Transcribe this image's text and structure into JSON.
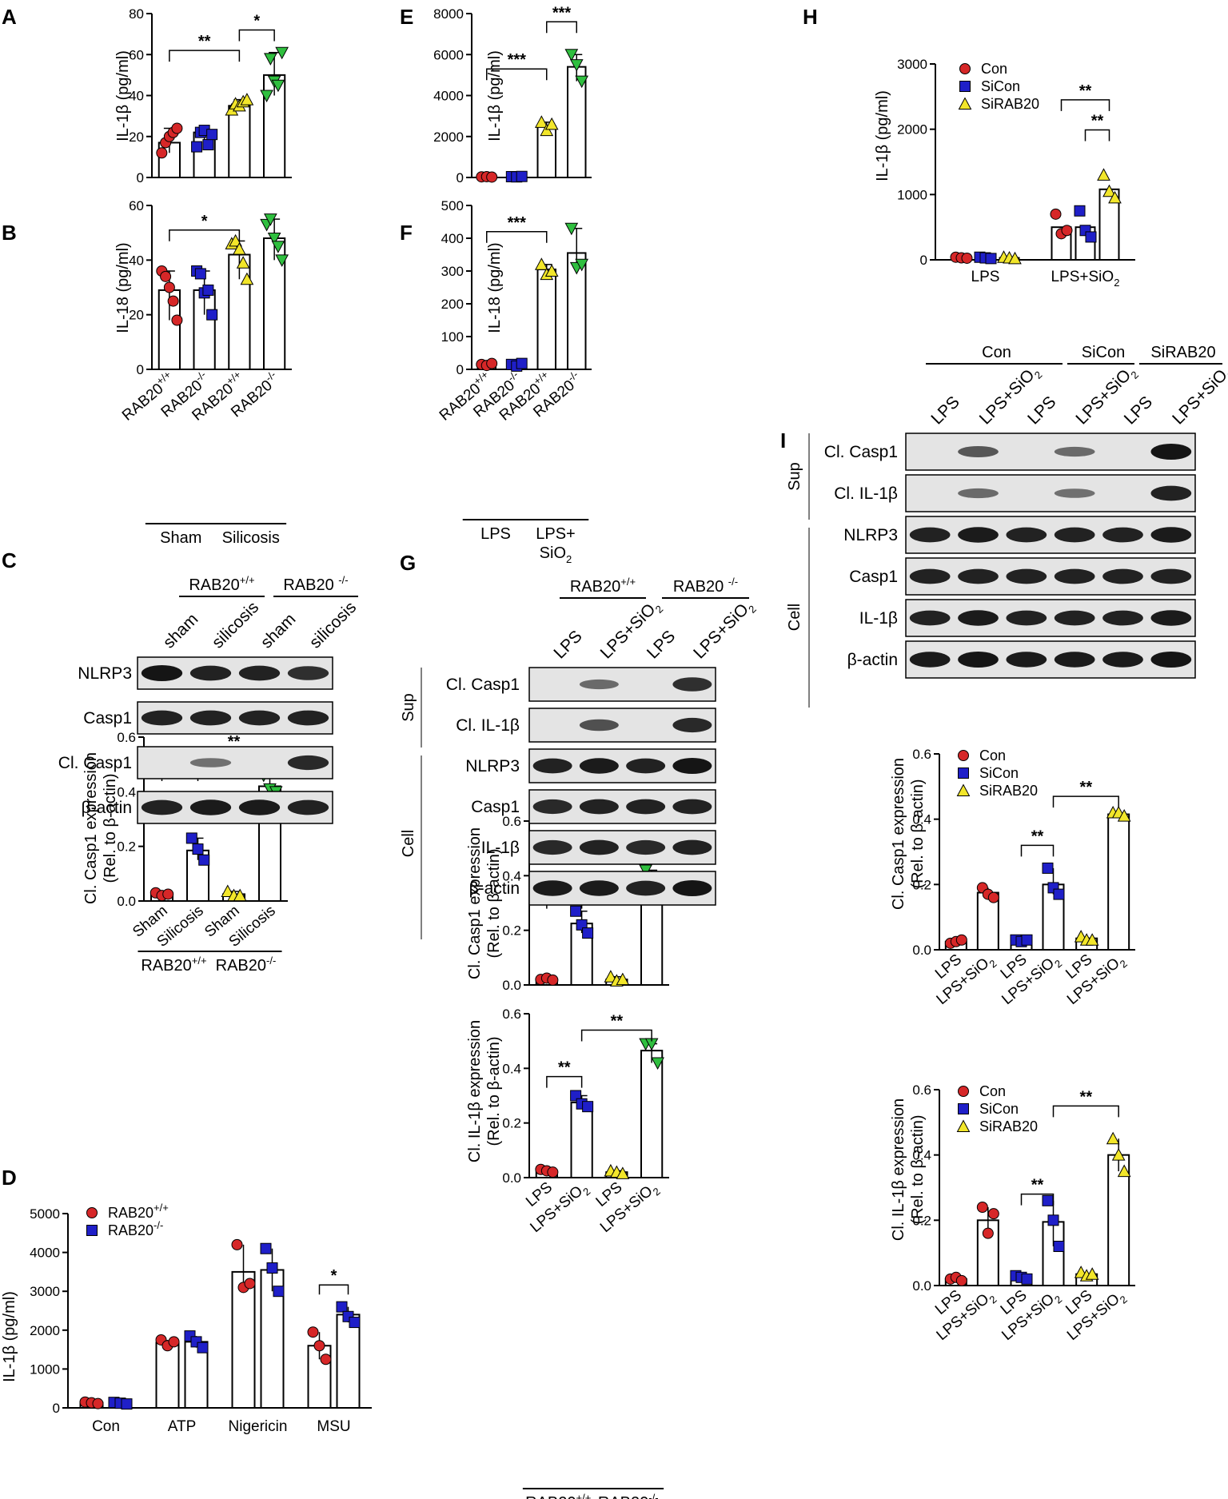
{
  "panels": {
    "A": "A",
    "B": "B",
    "C": "C",
    "D": "D",
    "E": "E",
    "F": "F",
    "G": "G",
    "H": "H",
    "I": "I"
  },
  "colors": {
    "red": "#d62728",
    "blue": "#1f1fc8",
    "yellow": "#f2e62a",
    "green": "#2fbf3f"
  },
  "charts": [
    {
      "id": "A",
      "type": "bar",
      "ylabel": "IL-1β (pg/ml)",
      "ylim": [
        0,
        80
      ],
      "ticks": [
        0,
        20,
        40,
        60,
        80
      ],
      "categories": [
        "RAB20+/+",
        "RAB20-/-",
        "RAB20+/+",
        "RAB20-/-"
      ],
      "values": [
        17,
        22,
        35,
        50
      ],
      "points": [
        [
          12,
          17,
          20,
          22,
          24
        ],
        [
          15,
          22,
          23,
          16,
          21
        ],
        [
          33,
          36,
          35,
          37,
          38
        ],
        [
          40,
          58,
          47,
          45,
          61
        ]
      ],
      "colors": [
        "red",
        "blue",
        "yellow",
        "green"
      ],
      "sig": [
        {
          "from": 0,
          "to": 2,
          "label": "**",
          "y": 62
        },
        {
          "from": 2,
          "to": 3,
          "label": "*",
          "y": 72
        }
      ]
    },
    {
      "id": "B",
      "type": "bar",
      "ylabel": "IL-18 (pg/ml)",
      "ylim": [
        0,
        60
      ],
      "ticks": [
        0,
        20,
        40,
        60
      ],
      "categories": [
        "RAB20+/+",
        "RAB20-/-",
        "RAB20+/+",
        "RAB20-/-"
      ],
      "values": [
        29,
        29,
        42,
        48
      ],
      "points": [
        [
          36,
          34,
          30,
          25,
          18
        ],
        [
          36,
          35,
          28,
          29,
          20
        ],
        [
          46,
          47,
          44,
          39,
          33
        ],
        [
          53,
          55,
          48,
          45,
          40
        ]
      ],
      "colors": [
        "red",
        "blue",
        "yellow",
        "green"
      ],
      "sig": [
        {
          "from": 0,
          "to": 2,
          "label": "*",
          "y": 51
        }
      ],
      "groups": [
        "Sham",
        "Silicosis"
      ]
    },
    {
      "id": "E",
      "type": "bar",
      "ylabel": "IL-1β (pg/ml)",
      "ylim": [
        0,
        8000
      ],
      "ticks": [
        0,
        2000,
        4000,
        6000,
        8000
      ],
      "categories": [],
      "values": [
        30,
        40,
        2500,
        5400
      ],
      "points": [
        [
          30,
          40,
          20
        ],
        [
          40,
          30,
          50
        ],
        [
          2700,
          2300,
          2600
        ],
        [
          6000,
          5500,
          4700
        ]
      ],
      "colors": [
        "red",
        "blue",
        "yellow",
        "green"
      ],
      "sig": [
        {
          "from": 0,
          "to": 2,
          "label": "***",
          "y": 5300
        },
        {
          "from": 2,
          "to": 3,
          "label": "***",
          "y": 7600
        }
      ]
    },
    {
      "id": "F",
      "type": "bar",
      "ylabel": "IL-18 (pg/ml)",
      "ylim": [
        0,
        500
      ],
      "ticks": [
        0,
        100,
        200,
        300,
        400,
        500
      ],
      "categories": [
        "RAB20+/+",
        "RAB20-/-",
        "RAB20+/+",
        "RAB20-/-"
      ],
      "values": [
        15,
        15,
        305,
        355
      ],
      "points": [
        [
          15,
          12,
          18
        ],
        [
          15,
          10,
          18
        ],
        [
          320,
          290,
          300
        ],
        [
          430,
          310,
          320
        ]
      ],
      "colors": [
        "red",
        "blue",
        "yellow",
        "green"
      ],
      "sig": [
        {
          "from": 0,
          "to": 2,
          "label": "***",
          "y": 420
        }
      ],
      "groups": [
        "LPS",
        "LPS+\nSiO2"
      ]
    },
    {
      "id": "C2",
      "type": "bar",
      "ylabel": "Cl. Casp1  expression\n(Rel. to β-actin)",
      "ylim": [
        0,
        0.6
      ],
      "ticks": [
        "0.0",
        "0.2",
        "0.4",
        "0.6"
      ],
      "categories": [
        "Sham",
        "Silicosis",
        "Sham",
        "Silicosis"
      ],
      "values": [
        0.025,
        0.185,
        0.025,
        0.42
      ],
      "points": [
        [
          0.03,
          0.02,
          0.025
        ],
        [
          0.23,
          0.19,
          0.15
        ],
        [
          0.035,
          0.02,
          0.02
        ],
        [
          0.46,
          0.41,
          0.4
        ]
      ],
      "colors": [
        "red",
        "blue",
        "yellow",
        "green"
      ],
      "sig": [
        {
          "from": 0,
          "to": 1,
          "label": "**",
          "y": 0.48
        },
        {
          "from": 1,
          "to": 3,
          "label": "**",
          "y": 0.55
        }
      ],
      "groups": [
        "RAB20+/+",
        "RAB20-/-"
      ]
    },
    {
      "id": "D",
      "type": "grouped",
      "ylabel": "IL-1β (pg/ml)",
      "ylim": [
        0,
        5000
      ],
      "ticks": [
        0,
        1000,
        2000,
        3000,
        4000,
        5000
      ],
      "categories": [
        "Con",
        "ATP",
        "Nigericin",
        "MSU"
      ],
      "values": [
        [
          130,
          120
        ],
        [
          1680,
          1700
        ],
        [
          3500,
          3550
        ],
        [
          1600,
          2400
        ]
      ],
      "points": [
        [
          [
            150,
            130,
            110
          ],
          [
            140,
            120,
            100
          ]
        ],
        [
          [
            1750,
            1600,
            1700
          ],
          [
            1850,
            1700,
            1550
          ]
        ],
        [
          [
            4200,
            3100,
            3200
          ],
          [
            4100,
            3600,
            3000
          ]
        ],
        [
          [
            1950,
            1600,
            1250
          ],
          [
            2600,
            2350,
            2200
          ]
        ]
      ],
      "legend": [
        "RAB20+/+",
        "RAB20-/-"
      ],
      "sig": [
        {
          "cat": 3,
          "label": "*",
          "y": 3000
        }
      ]
    },
    {
      "id": "G1",
      "type": "bar",
      "ylabel": "Cl. Casp1  expression\n(Rel. to β-actin)",
      "ylim": [
        0,
        0.6
      ],
      "ticks": [
        "0.0",
        "0.2",
        "0.4",
        "0.6"
      ],
      "categories": [],
      "values": [
        0.02,
        0.225,
        0.02,
        0.385
      ],
      "points": [
        [
          0.02,
          0.025,
          0.018
        ],
        [
          0.27,
          0.22,
          0.19
        ],
        [
          0.03,
          0.015,
          0.02
        ],
        [
          0.42,
          0.39,
          0.35
        ]
      ],
      "colors": [
        "red",
        "blue",
        "yellow",
        "green"
      ],
      "sig": [
        {
          "from": 0,
          "to": 1,
          "label": "**",
          "y": 0.32
        },
        {
          "from": 1,
          "to": 3,
          "label": "*",
          "y": 0.5
        }
      ]
    },
    {
      "id": "G2",
      "type": "bar",
      "ylabel": "Cl. IL-1β  expression\n(Rel. to β-actin)",
      "ylim": [
        0,
        0.6
      ],
      "ticks": [
        "0.0",
        "0.2",
        "0.4",
        "0.6"
      ],
      "categories": [
        "LPS",
        "LPS+SiO2",
        "LPS",
        "LPS+SiO2"
      ],
      "values": [
        0.025,
        0.275,
        0.02,
        0.465
      ],
      "points": [
        [
          0.03,
          0.025,
          0.02
        ],
        [
          0.3,
          0.27,
          0.26
        ],
        [
          0.025,
          0.02,
          0.015
        ],
        [
          0.49,
          0.49,
          0.42
        ]
      ],
      "colors": [
        "red",
        "blue",
        "yellow",
        "green"
      ],
      "sig": [
        {
          "from": 0,
          "to": 1,
          "label": "**",
          "y": 0.37
        },
        {
          "from": 1,
          "to": 3,
          "label": "**",
          "y": 0.54
        }
      ],
      "groups": [
        "RAB20+/+",
        "RAB20-/-"
      ]
    },
    {
      "id": "H",
      "type": "grouped3",
      "ylabel": "IL-1β (pg/ml)",
      "ylim": [
        0,
        3000
      ],
      "ticks": [
        0,
        1000,
        2000,
        3000
      ],
      "categories": [
        "LPS",
        "LPS+SiO2"
      ],
      "values": [
        [
          30,
          30,
          30
        ],
        [
          500,
          500,
          1080
        ]
      ],
      "points": [
        [
          [
            40,
            30,
            25
          ],
          [
            40,
            30,
            20
          ],
          [
            40,
            30,
            20
          ]
        ],
        [
          [
            700,
            400,
            450
          ],
          [
            750,
            450,
            350
          ],
          [
            1300,
            1050,
            950
          ]
        ]
      ],
      "legend": [
        "Con",
        "SiCon",
        "SiRAB20"
      ],
      "sig": [
        {
          "a": [
            1,
            0
          ],
          "b": [
            1,
            2
          ],
          "label": "**",
          "y": 2450
        },
        {
          "a": [
            1,
            1
          ],
          "b": [
            1,
            2
          ],
          "label": "**",
          "y": 1990
        }
      ]
    },
    {
      "id": "I1",
      "type": "pairs3",
      "ylabel": "Cl. Casp1  expression\n(Rel. to β-actin)",
      "ylim": [
        0,
        0.6
      ],
      "ticks": [
        "0.0",
        "0.2",
        "0.4",
        "0.6"
      ],
      "categories": [
        "LPS",
        "LPS+SiO2",
        "LPS",
        "LPS+SiO2",
        "LPS",
        "LPS+SiO2"
      ],
      "values": [
        0.025,
        0.175,
        0.03,
        0.2,
        0.035,
        0.415
      ],
      "points": [
        [
          0.02,
          0.025,
          0.03
        ],
        [
          0.19,
          0.17,
          0.16
        ],
        [
          0.03,
          0.025,
          0.03
        ],
        [
          0.25,
          0.19,
          0.17
        ],
        [
          0.04,
          0.03,
          0.03
        ],
        [
          0.42,
          0.42,
          0.41
        ]
      ],
      "pointcolors": [
        "red",
        "red",
        "blue",
        "blue",
        "yellow",
        "yellow"
      ],
      "legend": [
        "Con",
        "SiCon",
        "SiRAB20"
      ],
      "sig": [
        {
          "from": 2,
          "to": 3,
          "label": "**",
          "y": 0.32
        },
        {
          "from": 3,
          "to": 5,
          "label": "**",
          "y": 0.47
        }
      ]
    },
    {
      "id": "I2",
      "type": "pairs3",
      "ylabel": "Cl. IL-1β  expression\n(Rel. to β-actin)",
      "ylim": [
        0,
        0.6
      ],
      "ticks": [
        "0.0",
        "0.2",
        "0.4",
        "0.6"
      ],
      "categories": [
        "LPS",
        "LPS+SiO2",
        "LPS",
        "LPS+SiO2",
        "LPS",
        "LPS+SiO2"
      ],
      "values": [
        0.02,
        0.2,
        0.025,
        0.195,
        0.035,
        0.4
      ],
      "points": [
        [
          0.02,
          0.025,
          0.015
        ],
        [
          0.24,
          0.16,
          0.22
        ],
        [
          0.03,
          0.025,
          0.02
        ],
        [
          0.26,
          0.2,
          0.12
        ],
        [
          0.04,
          0.03,
          0.035
        ],
        [
          0.45,
          0.4,
          0.35
        ]
      ],
      "pointcolors": [
        "red",
        "red",
        "blue",
        "blue",
        "yellow",
        "yellow"
      ],
      "legend": [
        "Con",
        "SiCon",
        "SiRAB20"
      ],
      "sig": [
        {
          "from": 2,
          "to": 3,
          "label": "**",
          "y": 0.28
        },
        {
          "from": 3,
          "to": 5,
          "label": "**",
          "y": 0.55
        }
      ]
    }
  ],
  "blots": {
    "C": {
      "groups": [
        "RAB20+/+",
        "RAB20 -/-"
      ],
      "lanes": [
        "sham",
        "silicosis",
        "sham",
        "silicosis"
      ],
      "rows": [
        "NLRP3",
        "Casp1",
        "Cl. Casp1",
        "β-actin"
      ]
    },
    "G": {
      "groups": [
        "RAB20+/+",
        "RAB20 -/-"
      ],
      "lanes": [
        "LPS",
        "LPS+SiO2",
        "LPS",
        "LPS+SiO2"
      ],
      "sup": "Sup",
      "cell": "Cell",
      "rows": [
        "Cl. Casp1",
        "Cl. IL-1β",
        "NLRP3",
        "Casp1",
        "IL-1β",
        "β-actin"
      ]
    },
    "I": {
      "groups": [
        "Con",
        "SiCon",
        "SiRAB20"
      ],
      "lanes": [
        "LPS",
        "LPS+SiO2",
        "LPS",
        "LPS+SiO2",
        "LPS",
        "LPS+SiO2"
      ],
      "sup": "Sup",
      "cell": "Cell",
      "rows": [
        "Cl. Casp1",
        "Cl. IL-1β",
        "NLRP3",
        "Casp1",
        "IL-1β",
        "β-actin"
      ]
    }
  }
}
